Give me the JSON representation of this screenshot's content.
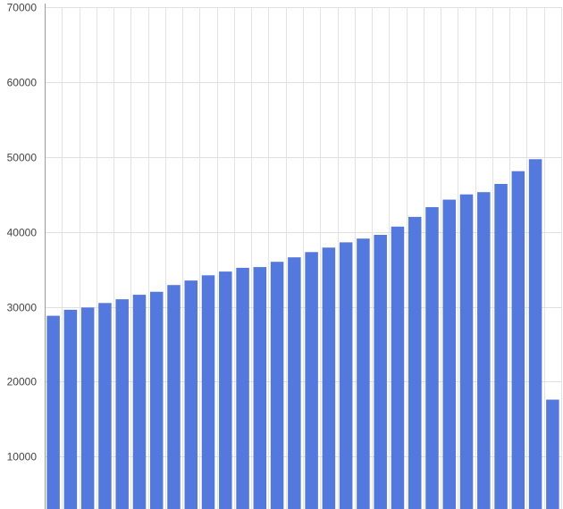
{
  "chart_data": {
    "type": "bar",
    "title": "",
    "xlabel": "",
    "ylabel": "",
    "ylim": [
      3000,
      70000
    ],
    "yticks": [
      10000,
      20000,
      30000,
      40000,
      50000,
      60000,
      70000
    ],
    "y_tick_labels": [
      "10000",
      "20000",
      "30000",
      "40000",
      "50000",
      "60000",
      "70000"
    ],
    "x_tick_labels_visible": false,
    "grid": true,
    "legend": "none",
    "bar_color": "#5479de",
    "series": [
      {
        "values": [
          28800,
          29600,
          29900,
          30500,
          31000,
          31600,
          32000,
          32900,
          33500,
          34200,
          34700,
          35200,
          35300,
          36000,
          36600,
          37300,
          37900,
          38600,
          39100,
          39600,
          40700,
          42000,
          43300,
          44300,
          45000,
          45300,
          46400,
          48100,
          49700,
          17600
        ]
      }
    ]
  }
}
